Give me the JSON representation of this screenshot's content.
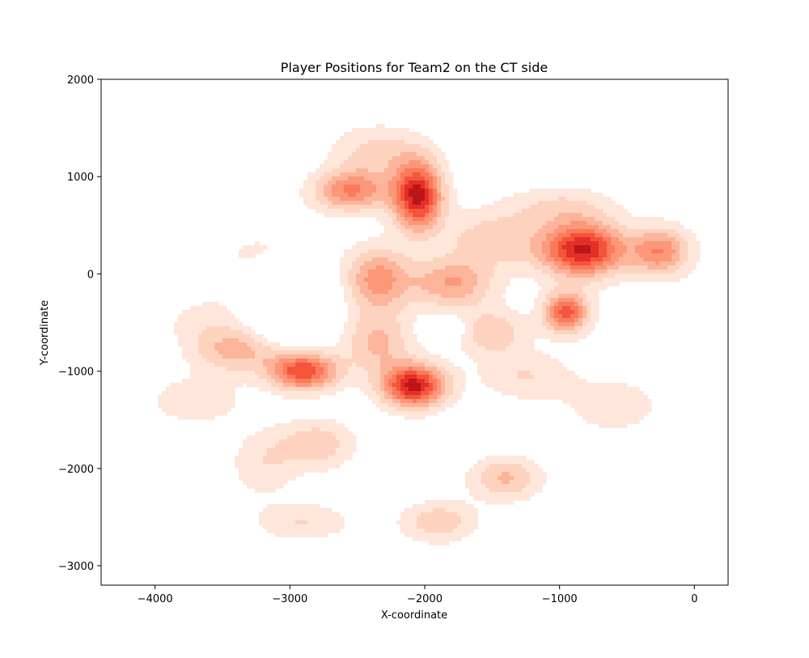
{
  "chart_data": {
    "type": "heatmap",
    "subtype": "kde-filled-contour",
    "title": "Player Positions for Team2 on the CT side",
    "xlabel": "X-coordinate",
    "ylabel": "Y-coordinate",
    "xlim": [
      -4400,
      250
    ],
    "ylim": [
      -3200,
      2000
    ],
    "xticks": [
      -4000,
      -3000,
      -2000,
      -1000,
      0
    ],
    "yticks": [
      -3000,
      -2000,
      -1000,
      0,
      1000,
      2000
    ],
    "xtick_labels": [
      "−4000",
      "−3000",
      "−2000",
      "−1000",
      "0"
    ],
    "ytick_labels": [
      "−3000",
      "−2000",
      "−1000",
      "0",
      "1000",
      "2000"
    ],
    "grid": false,
    "legend": false,
    "colormap": "Reds",
    "level_colors": [
      "#ffffff",
      "#fee6db",
      "#fdd3c0",
      "#fcb59b",
      "#fc9779",
      "#fb7a5a",
      "#f5543c",
      "#e32f27",
      "#bb151a"
    ],
    "hotspots": [
      {
        "x": -2050,
        "y": 800,
        "weight": 1.0,
        "sx": 130,
        "sy": 250
      },
      {
        "x": -830,
        "y": 250,
        "weight": 1.0,
        "sx": 220,
        "sy": 200
      },
      {
        "x": -2080,
        "y": -1150,
        "weight": 1.0,
        "sx": 170,
        "sy": 160
      },
      {
        "x": -2900,
        "y": -1000,
        "weight": 0.85,
        "sx": 180,
        "sy": 140
      },
      {
        "x": -950,
        "y": -400,
        "weight": 0.8,
        "sx": 120,
        "sy": 150
      },
      {
        "x": -250,
        "y": 230,
        "weight": 0.6,
        "sx": 160,
        "sy": 180
      },
      {
        "x": -2550,
        "y": 850,
        "weight": 0.62,
        "sx": 200,
        "sy": 150
      },
      {
        "x": -2350,
        "y": -50,
        "weight": 0.55,
        "sx": 170,
        "sy": 230
      },
      {
        "x": -1800,
        "y": -100,
        "weight": 0.5,
        "sx": 220,
        "sy": 180
      },
      {
        "x": -3400,
        "y": -800,
        "weight": 0.4,
        "sx": 220,
        "sy": 160
      },
      {
        "x": -1500,
        "y": -600,
        "weight": 0.35,
        "sx": 180,
        "sy": 170
      },
      {
        "x": -1400,
        "y": -2100,
        "weight": 0.4,
        "sx": 190,
        "sy": 160
      },
      {
        "x": -1900,
        "y": -2550,
        "weight": 0.35,
        "sx": 200,
        "sy": 150
      },
      {
        "x": -2800,
        "y": -1750,
        "weight": 0.35,
        "sx": 200,
        "sy": 180
      },
      {
        "x": -3200,
        "y": -1950,
        "weight": 0.22,
        "sx": 180,
        "sy": 250
      },
      {
        "x": -3700,
        "y": -1300,
        "weight": 0.22,
        "sx": 250,
        "sy": 180
      },
      {
        "x": -2900,
        "y": -2550,
        "weight": 0.25,
        "sx": 250,
        "sy": 140
      },
      {
        "x": -600,
        "y": -1350,
        "weight": 0.22,
        "sx": 250,
        "sy": 200
      },
      {
        "x": -3150,
        "y": 150,
        "weight": 0.18,
        "sx": 300,
        "sy": 250
      },
      {
        "x": -2350,
        "y": 1250,
        "weight": 0.3,
        "sx": 250,
        "sy": 200
      },
      {
        "x": -1500,
        "y": 350,
        "weight": 0.35,
        "sx": 250,
        "sy": 200
      },
      {
        "x": -1250,
        "y": -1050,
        "weight": 0.25,
        "sx": 250,
        "sy": 180
      },
      {
        "x": -2350,
        "y": -700,
        "weight": 0.4,
        "sx": 180,
        "sy": 230
      },
      {
        "x": -1000,
        "y": 700,
        "weight": 0.25,
        "sx": 300,
        "sy": 150
      },
      {
        "x": -3600,
        "y": -500,
        "weight": 0.18,
        "sx": 250,
        "sy": 200
      }
    ],
    "voids": [
      {
        "x": -3000,
        "y": -250,
        "strength": 0.7,
        "sx": 180,
        "sy": 240
      },
      {
        "x": -1850,
        "y": -550,
        "strength": 0.35,
        "sx": 90,
        "sy": 70
      }
    ]
  }
}
